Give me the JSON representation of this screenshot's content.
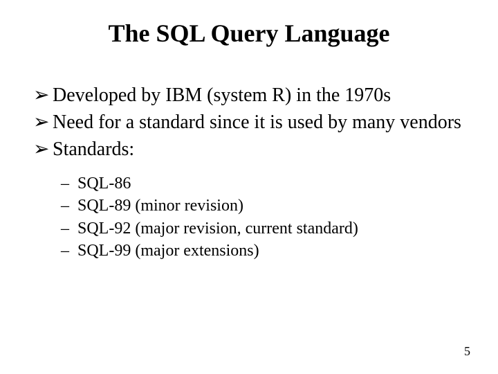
{
  "title": "The SQL Query Language",
  "bullets": {
    "b0": "Developed by IBM (system R) in the 1970s",
    "b1": "Need for a standard since it is used by many vendors",
    "b2": "Standards:"
  },
  "sub": {
    "s0": "SQL-86",
    "s1": "SQL-89 (minor revision)",
    "s2": "SQL-92 (major revision, current standard)",
    "s3": "SQL-99 (major extensions)"
  },
  "glyphs": {
    "arrow": "➢",
    "dash": "–"
  },
  "page_number": "5",
  "colors": {
    "background": "#ffffff",
    "text": "#000000"
  },
  "fonts": {
    "title_size_pt": 36,
    "body_size_pt": 28,
    "sub_size_pt": 24,
    "pagenum_size_pt": 18,
    "family": "Times New Roman"
  }
}
